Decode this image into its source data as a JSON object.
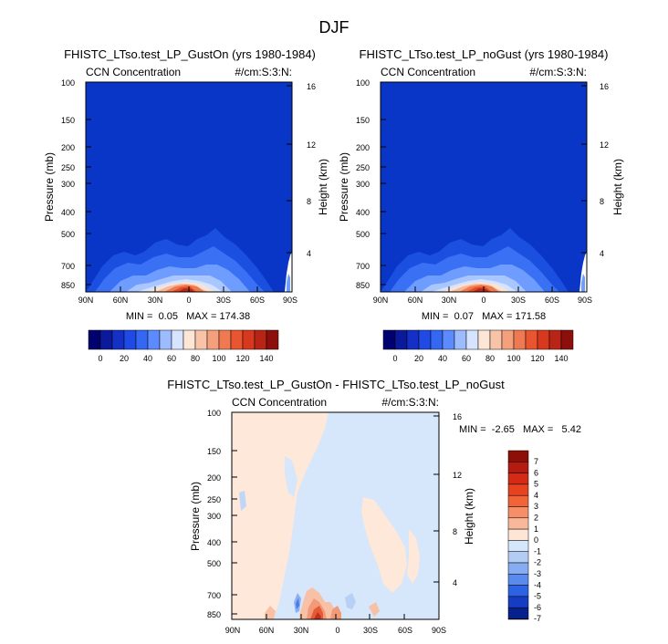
{
  "figure": {
    "title": "DJF"
  },
  "chart_data": [
    {
      "type": "heatmap",
      "title": "FHISTC_LTso.test_LP_GustOn (yrs 1980-1984)",
      "left_label": "CCN Concentration",
      "right_label": "#/cm:S:3:N:",
      "ylabel": "Pressure (mb)",
      "ylabel_right": "Height (km)",
      "x_ticks": [
        "90N",
        "60N",
        "30N",
        "0",
        "30S",
        "60S",
        "90S"
      ],
      "y_ticks": [
        "100",
        "150",
        "200",
        "250",
        "300",
        "400",
        "500",
        "700",
        "850"
      ],
      "y_ticks_right": [
        "16",
        "12",
        "8",
        "4"
      ],
      "stats": "MIN =  0.05   MAX = 174.38",
      "colorbar": {
        "orientation": "horizontal",
        "tick_labels": [
          "0",
          "20",
          "40",
          "60",
          "80",
          "100",
          "120",
          "140"
        ]
      }
    },
    {
      "type": "heatmap",
      "title": "FHISTC_LTso.test_LP_noGust (yrs 1980-1984)",
      "left_label": "CCN Concentration",
      "right_label": "#/cm:S:3:N:",
      "ylabel": "Pressure (mb)",
      "ylabel_right": "Height (km)",
      "x_ticks": [
        "90N",
        "60N",
        "30N",
        "0",
        "30S",
        "60S",
        "90S"
      ],
      "y_ticks": [
        "100",
        "150",
        "200",
        "250",
        "300",
        "400",
        "500",
        "700",
        "850"
      ],
      "y_ticks_right": [
        "16",
        "12",
        "8",
        "4"
      ],
      "stats": "MIN =  0.07   MAX = 171.58",
      "colorbar": {
        "orientation": "horizontal",
        "tick_labels": [
          "0",
          "20",
          "40",
          "60",
          "80",
          "100",
          "120",
          "140"
        ]
      }
    },
    {
      "type": "heatmap",
      "title": "FHISTC_LTso.test_LP_GustOn - FHISTC_LTso.test_LP_noGust",
      "left_label": "CCN Concentration",
      "right_label": "#/cm:S:3:N:",
      "ylabel": "Pressure (mb)",
      "ylabel_right": "Height (km)",
      "x_ticks": [
        "90N",
        "60N",
        "30N",
        "0",
        "30S",
        "60S",
        "90S"
      ],
      "y_ticks": [
        "100",
        "150",
        "200",
        "250",
        "300",
        "400",
        "500",
        "700",
        "850"
      ],
      "y_ticks_right": [
        "16",
        "12",
        "8",
        "4"
      ],
      "stats": "MIN =  -2.65   MAX =   5.42",
      "colorbar": {
        "orientation": "vertical",
        "tick_labels": [
          "7",
          "6",
          "5",
          "4",
          "3",
          "2",
          "1",
          "0",
          "-1",
          "-2",
          "-3",
          "-4",
          "-5",
          "-6",
          "-7"
        ]
      }
    }
  ]
}
